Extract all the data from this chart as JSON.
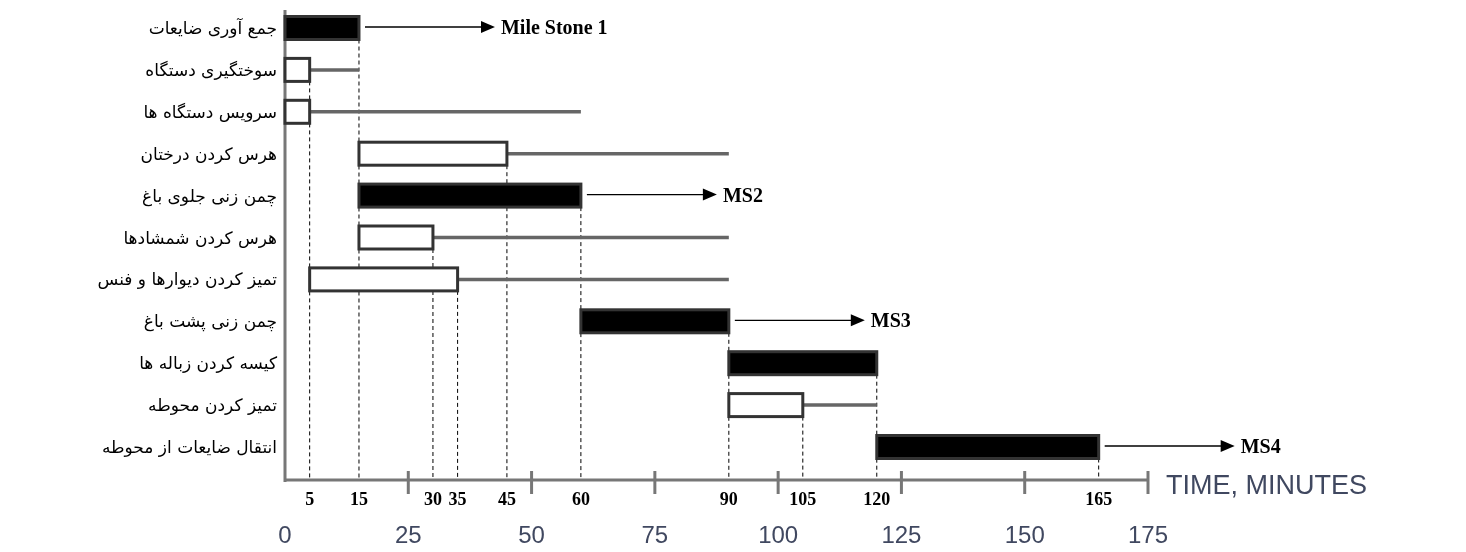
{
  "chart_data": {
    "type": "bar",
    "orientation": "horizontal",
    "categories": [
      "جمع آوری ضایعات",
      "سوختگیری دستگاه",
      "سرویس دستگاه ها",
      "هرس کردن درختان",
      "چمن زنی جلوی باغ",
      "هرس کردن شمشادها",
      "تمیز کردن دیوارها و فنس",
      "چمن زنی پشت باغ",
      "کیسه کردن زباله ها",
      "تمیز کردن محوطه",
      "انتقال ضایعات از محوطه"
    ],
    "base": [
      0,
      0,
      0,
      15,
      15,
      15,
      5,
      60,
      90,
      90,
      120
    ],
    "values": [
      15,
      5,
      5,
      30,
      45,
      15,
      30,
      30,
      30,
      15,
      45
    ],
    "colors": [
      "#000000",
      "#ffffff",
      "#ffffff",
      "#ffffff",
      "#000000",
      "#ffffff",
      "#ffffff",
      "#000000",
      "#000000",
      "#ffffff",
      "#000000"
    ],
    "errors": [
      null,
      [
        5,
        15
      ],
      [
        5,
        60
      ],
      [
        45,
        90
      ],
      null,
      [
        30,
        90
      ],
      [
        35,
        90
      ],
      null,
      null,
      [
        105,
        120
      ],
      null
    ],
    "xlabel": "TIME, MINUTES",
    "xlim": [
      0,
      175
    ],
    "xticks": [
      5,
      15,
      30,
      35,
      45,
      60,
      90,
      105,
      120,
      165
    ],
    "x2lim": [
      0,
      175
    ],
    "x2ticks": [
      0,
      25,
      50,
      75,
      100,
      125,
      150,
      175
    ],
    "ref_lines": [
      {
        "axis": "x",
        "value": 5,
        "line_style": "dashed"
      },
      {
        "axis": "x",
        "value": 15,
        "line_style": "dashed"
      },
      {
        "axis": "x",
        "value": 30,
        "line_style": "dashed"
      },
      {
        "axis": "x",
        "value": 35,
        "line_style": "dashed"
      },
      {
        "axis": "x",
        "value": 45,
        "line_style": "dashed"
      },
      {
        "axis": "x",
        "value": 60,
        "line_style": "dashed"
      },
      {
        "axis": "x",
        "value": 90,
        "line_style": "dashed"
      },
      {
        "axis": "x",
        "value": 105,
        "line_style": "dashed"
      },
      {
        "axis": "x",
        "value": 120,
        "line_style": "dashed"
      },
      {
        "axis": "x",
        "value": 165,
        "line_style": "dashed"
      }
    ],
    "annotations": [
      {
        "text": "Mile Stone 1",
        "x": 15,
        "y": "جمع آوری ضایعات"
      },
      {
        "text": "MS2",
        "x": 60,
        "y": "چمن زنی جلوی باغ"
      },
      {
        "text": "MS3",
        "x": 90,
        "y": "چمن زنی پشت باغ"
      },
      {
        "text": "MS4",
        "x": 165,
        "y": "انتقال ضایعات از محوطه"
      }
    ]
  }
}
